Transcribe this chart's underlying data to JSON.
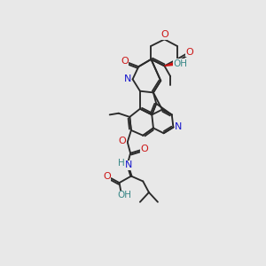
{
  "bg_color": "#e8e8e8",
  "bond_color": "#2a2a2a",
  "N_color": "#1515cc",
  "O_color": "#cc1515",
  "OH_color": "#3a8888",
  "figsize": [
    3.0,
    3.0
  ],
  "dpi": 100,
  "xlim": [
    40,
    250
  ],
  "ylim": [
    18,
    295
  ]
}
